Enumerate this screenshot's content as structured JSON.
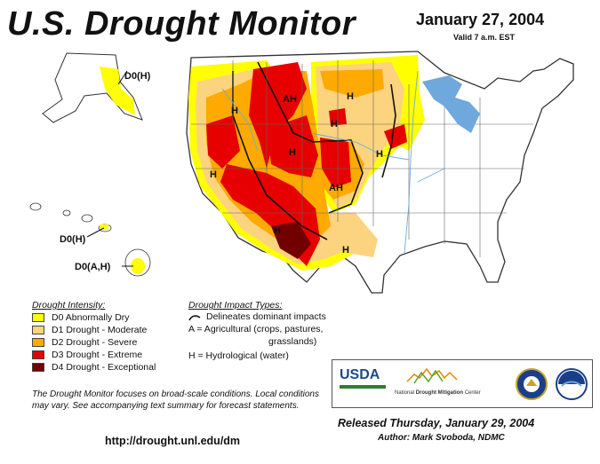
{
  "header": {
    "title": "U.S. Drought Monitor",
    "date": "January 27, 2004",
    "valid": "Valid 7 a.m. EST"
  },
  "map_labels": {
    "alaska": "D0(H)",
    "hawaii_top": "D0(H)",
    "hawaii_bottom": "D0(A,H)",
    "impacts": [
      "H",
      "AH",
      "H",
      "H",
      "H",
      "H",
      "H",
      "AH",
      "H",
      "H"
    ]
  },
  "legend": {
    "intensity_title": "Drought Intensity:",
    "items": [
      {
        "label": "D0 Abnormally Dry",
        "color": "#ffff00"
      },
      {
        "label": "D1 Drought - Moderate",
        "color": "#fcd37f"
      },
      {
        "label": "D2 Drought - Severe",
        "color": "#ffaa00"
      },
      {
        "label": "D3 Drought - Extreme",
        "color": "#e60000"
      },
      {
        "label": "D4 Drought - Exceptional",
        "color": "#730000"
      }
    ],
    "impact_title": "Drought Impact Types:",
    "impact_lines": [
      "Delineates dominant impacts",
      "A = Agricultural (crops, pastures,",
      "grasslands)",
      "H = Hydrological (water)"
    ]
  },
  "note": "The Drought Monitor focuses on broad-scale conditions. Local conditions may vary.  See accompanying text summary for forecast statements.",
  "url": "http://drought.unl.edu/dm",
  "logos": {
    "usda": "USDA",
    "ndmc_prefix": "National",
    "ndmc_main": "Drought Mitigation",
    "ndmc_suffix": "Center"
  },
  "footer": {
    "released": "Released Thursday, January 29, 2004",
    "author": "Author: Mark Svoboda, NDMC"
  }
}
